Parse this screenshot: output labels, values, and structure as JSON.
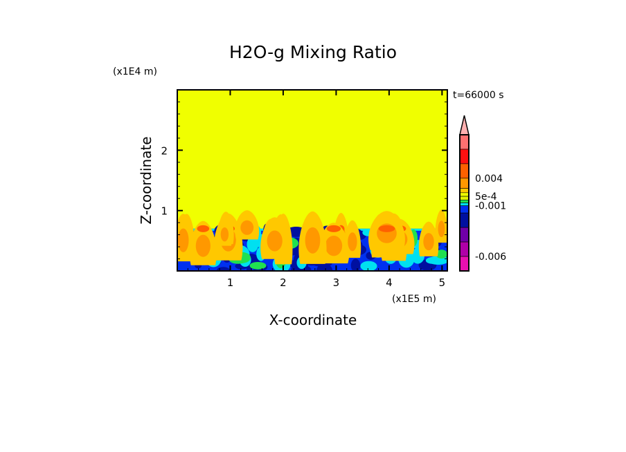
{
  "chart_data": {
    "type": "heatmap",
    "title": "H2O-g Mixing Ratio",
    "xlabel": "X-coordinate",
    "ylabel": "Z-coordinate",
    "x_unit": "(x1E5 m)",
    "y_unit": "(x1E4 m)",
    "time_label": "t=66000 s",
    "xlim": [
      0,
      5.1
    ],
    "ylim": [
      0,
      3.0
    ],
    "xticks": [
      "1",
      "2",
      "3",
      "4",
      "5"
    ],
    "xtick_values": [
      1,
      2,
      3,
      4,
      5
    ],
    "yticks": [
      "1",
      "2"
    ],
    "ytick_values": [
      1,
      2
    ],
    "boundary_layer_top": 0.7,
    "plume_top": 1.02,
    "background_color": "#f0ff00",
    "colorbar": {
      "colors_top_to_bottom": [
        "#ffb0b0",
        "#ff7070",
        "#ff1010",
        "#ff6000",
        "#ff9800",
        "#ffc800",
        "#f0ff00",
        "#e0f000",
        "#20e050",
        "#00e0f0",
        "#0030f0",
        "#0010a0",
        "#7000a8",
        "#b000a8",
        "#e810b0"
      ],
      "tick_labels": [
        "0.004",
        "5e-4",
        "-0.001",
        "-0.006"
      ],
      "tick_segment_index": [
        3,
        6,
        9,
        13
      ]
    }
  }
}
